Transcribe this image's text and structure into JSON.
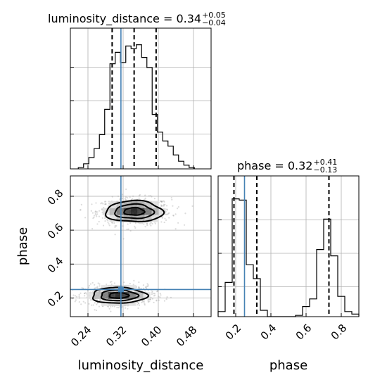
{
  "chart_data": {
    "type": "corner",
    "parameters": [
      "luminosity_distance",
      "phase"
    ],
    "truths": {
      "luminosity_distance": 0.315,
      "phase": 0.25
    },
    "diagonal": [
      {
        "name": "luminosity_distance",
        "title_text": "luminosity_distance = 0.34",
        "title_sup": "+0.05",
        "title_sub": "−0.04",
        "range": [
          0.2,
          0.52
        ],
        "quantiles": [
          0.295,
          0.345,
          0.395
        ],
        "edges": [
          0.218,
          0.23,
          0.242,
          0.254,
          0.266,
          0.278,
          0.29,
          0.302,
          0.314,
          0.326,
          0.338,
          0.35,
          0.362,
          0.374,
          0.386,
          0.398,
          0.41,
          0.422,
          0.434,
          0.446,
          0.458,
          0.47,
          0.482
        ],
        "counts": [
          0.01,
          0.04,
          0.09,
          0.16,
          0.27,
          0.47,
          0.83,
          0.92,
          0.84,
          0.97,
          0.95,
          0.98,
          0.88,
          0.8,
          0.43,
          0.29,
          0.22,
          0.18,
          0.11,
          0.06,
          0.03,
          0.01
        ],
        "xticks": [
          0.24,
          0.32,
          0.4,
          0.48
        ]
      },
      {
        "name": "phase",
        "title_text": "phase = 0.32",
        "title_sup": "+0.41",
        "title_sub": "−0.13",
        "range": [
          0.1,
          0.9
        ],
        "quantiles": [
          0.19,
          0.32,
          0.73
        ],
        "edges": [
          0.1,
          0.14,
          0.18,
          0.22,
          0.26,
          0.3,
          0.34,
          0.38,
          0.42,
          0.46,
          0.5,
          0.54,
          0.58,
          0.62,
          0.66,
          0.7,
          0.74,
          0.78,
          0.82,
          0.86,
          0.9
        ],
        "counts": [
          0.04,
          0.27,
          0.93,
          0.92,
          0.41,
          0.3,
          0.05,
          0.0,
          0.0,
          0.0,
          0.0,
          0.01,
          0.08,
          0.14,
          0.53,
          0.77,
          0.48,
          0.16,
          0.04,
          0.02
        ],
        "xticks": [
          0.2,
          0.4,
          0.6,
          0.8
        ]
      }
    ],
    "joint": {
      "x": "luminosity_distance",
      "y": "phase",
      "xlim": [
        0.2,
        0.52
      ],
      "ylim": [
        0.09,
        0.92
      ],
      "yticks": [
        0.2,
        0.4,
        0.6,
        0.8
      ],
      "modes": [
        {
          "cx": 0.345,
          "cy": 0.71,
          "sx": 0.042,
          "sy": 0.04
        },
        {
          "cx": 0.31,
          "cy": 0.215,
          "sx": 0.04,
          "sy": 0.03
        }
      ]
    },
    "xlabels": [
      "luminosity_distance",
      "phase"
    ],
    "ylabels": [
      "phase"
    ],
    "tick_labels": {
      "lum": [
        "0.24",
        "0.32",
        "0.40",
        "0.48"
      ],
      "phase_x": [
        "0.2",
        "0.4",
        "0.6",
        "0.8"
      ],
      "phase_y": [
        "0.2",
        "0.4",
        "0.6",
        "0.8"
      ]
    }
  }
}
